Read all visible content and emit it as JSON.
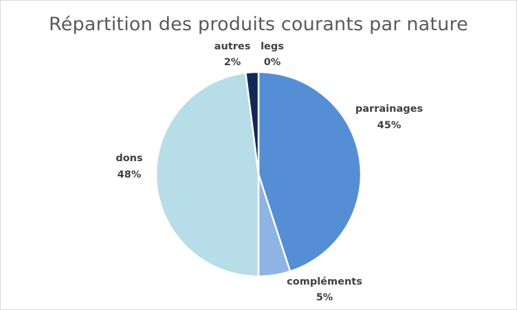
{
  "chart_data": {
    "type": "pie",
    "title": "Répartition des produits courants par nature",
    "slices": [
      {
        "label": "parrainages",
        "value": 45,
        "value_label": "45%",
        "color": "#558ed5"
      },
      {
        "label": "compléments",
        "value": 5,
        "value_label": "5%",
        "color": "#8eb4e3"
      },
      {
        "label": "dons",
        "value": 48,
        "value_label": "48%",
        "color": "#b7dde8"
      },
      {
        "label": "autres",
        "value": 2,
        "value_label": "2%",
        "color": "#10295a"
      },
      {
        "label": "legs",
        "value": 0,
        "value_label": "0%",
        "color": "#1f4e79"
      }
    ]
  }
}
